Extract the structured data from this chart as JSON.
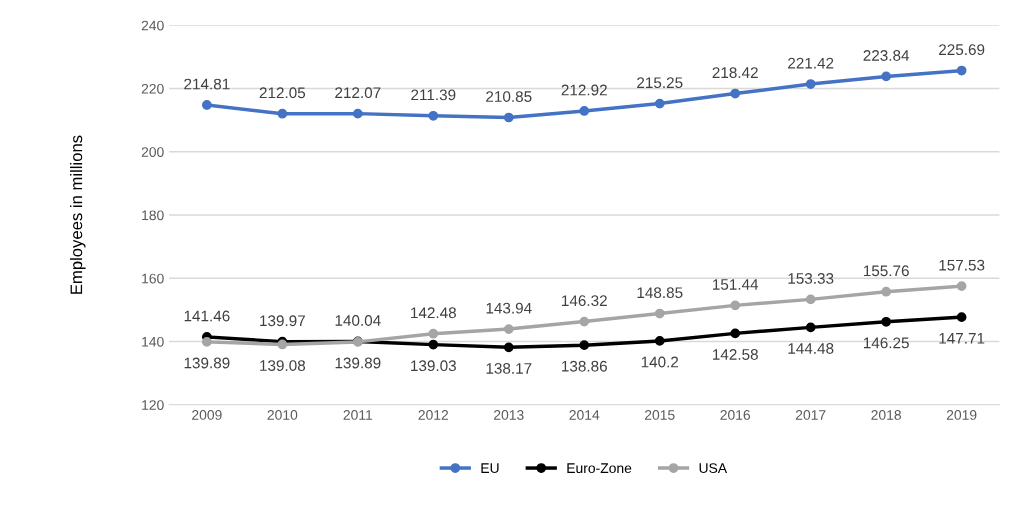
{
  "chart_data": {
    "type": "line",
    "ylabel": "Employees in millions",
    "categories": [
      "2009",
      "2010",
      "2011",
      "2012",
      "2013",
      "2014",
      "2015",
      "2016",
      "2017",
      "2018",
      "2019"
    ],
    "series": [
      {
        "name": "EU",
        "color": "#4472c4",
        "values": [
          214.81,
          212.05,
          212.07,
          211.39,
          210.85,
          212.92,
          215.25,
          218.42,
          221.42,
          223.84,
          225.69
        ]
      },
      {
        "name": "Euro-Zone",
        "color": "#000000",
        "values": [
          141.46,
          139.97,
          140.04,
          139.03,
          138.17,
          138.86,
          140.2,
          142.58,
          144.48,
          146.25,
          147.71
        ]
      },
      {
        "name": "USA",
        "color": "#a5a5a5",
        "values": [
          139.89,
          139.08,
          139.89,
          142.48,
          143.94,
          146.32,
          148.85,
          151.44,
          153.33,
          155.76,
          157.53
        ]
      }
    ],
    "ylim": [
      120,
      240
    ],
    "yticks": [
      120,
      140,
      160,
      180,
      200,
      220,
      240
    ],
    "grid": "y",
    "legend": "bottom",
    "marker": "circle",
    "line_style": "solid",
    "data_labels": true
  }
}
